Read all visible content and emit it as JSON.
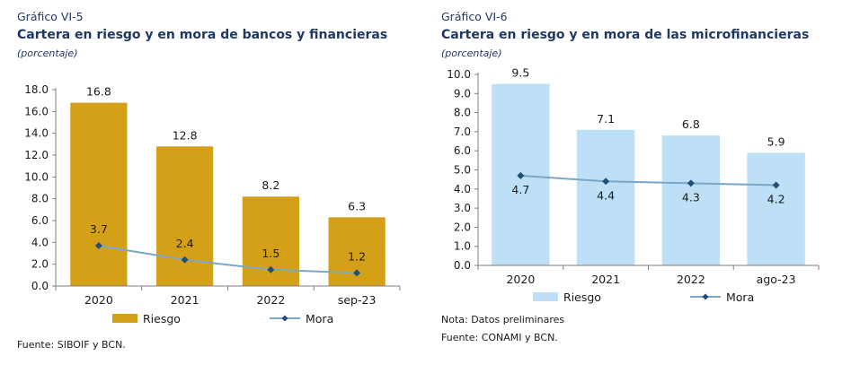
{
  "figures": [
    {
      "label": "Gráfico VI-5",
      "title": "Cartera en riesgo y en mora de bancos y financieras",
      "unit": "(porcentaje)",
      "notes": [
        "Fuente: SIBOIF y BCN."
      ]
    },
    {
      "label": "Gráfico VI-6",
      "title": "Cartera en riesgo y en mora de las microfinancieras",
      "unit": "(porcentaje)",
      "notes": [
        "Nota: Datos preliminares",
        "Fuente: CONAMI y BCN."
      ]
    }
  ],
  "chart_data": [
    {
      "type": "bar",
      "categories": [
        "2020",
        "2021",
        "2022",
        "sep-23"
      ],
      "ylim": [
        0,
        18
      ],
      "ytick_step": 2,
      "ytick_decimals": 1,
      "grid": false,
      "legend_position": "bottom",
      "series": [
        {
          "name": "Riesgo",
          "type": "bar",
          "values": [
            16.8,
            12.8,
            8.2,
            6.3
          ],
          "color": "#d4a017"
        },
        {
          "name": "Mora",
          "type": "line",
          "values": [
            3.7,
            2.4,
            1.5,
            1.2
          ],
          "color": "#7aa7c7",
          "marker_color": "#1f4e79"
        }
      ]
    },
    {
      "type": "bar",
      "categories": [
        "2020",
        "2021",
        "2022",
        "ago-23"
      ],
      "ylim": [
        0,
        10
      ],
      "ytick_step": 1,
      "ytick_decimals": 1,
      "grid": false,
      "legend_position": "bottom",
      "series": [
        {
          "name": "Riesgo",
          "type": "bar",
          "values": [
            9.5,
            7.1,
            6.8,
            5.9
          ],
          "color": "#bde0f6"
        },
        {
          "name": "Mora",
          "type": "line",
          "values": [
            4.7,
            4.4,
            4.3,
            4.2
          ],
          "color": "#7aa7c7",
          "marker_color": "#1f4e79"
        }
      ]
    }
  ]
}
